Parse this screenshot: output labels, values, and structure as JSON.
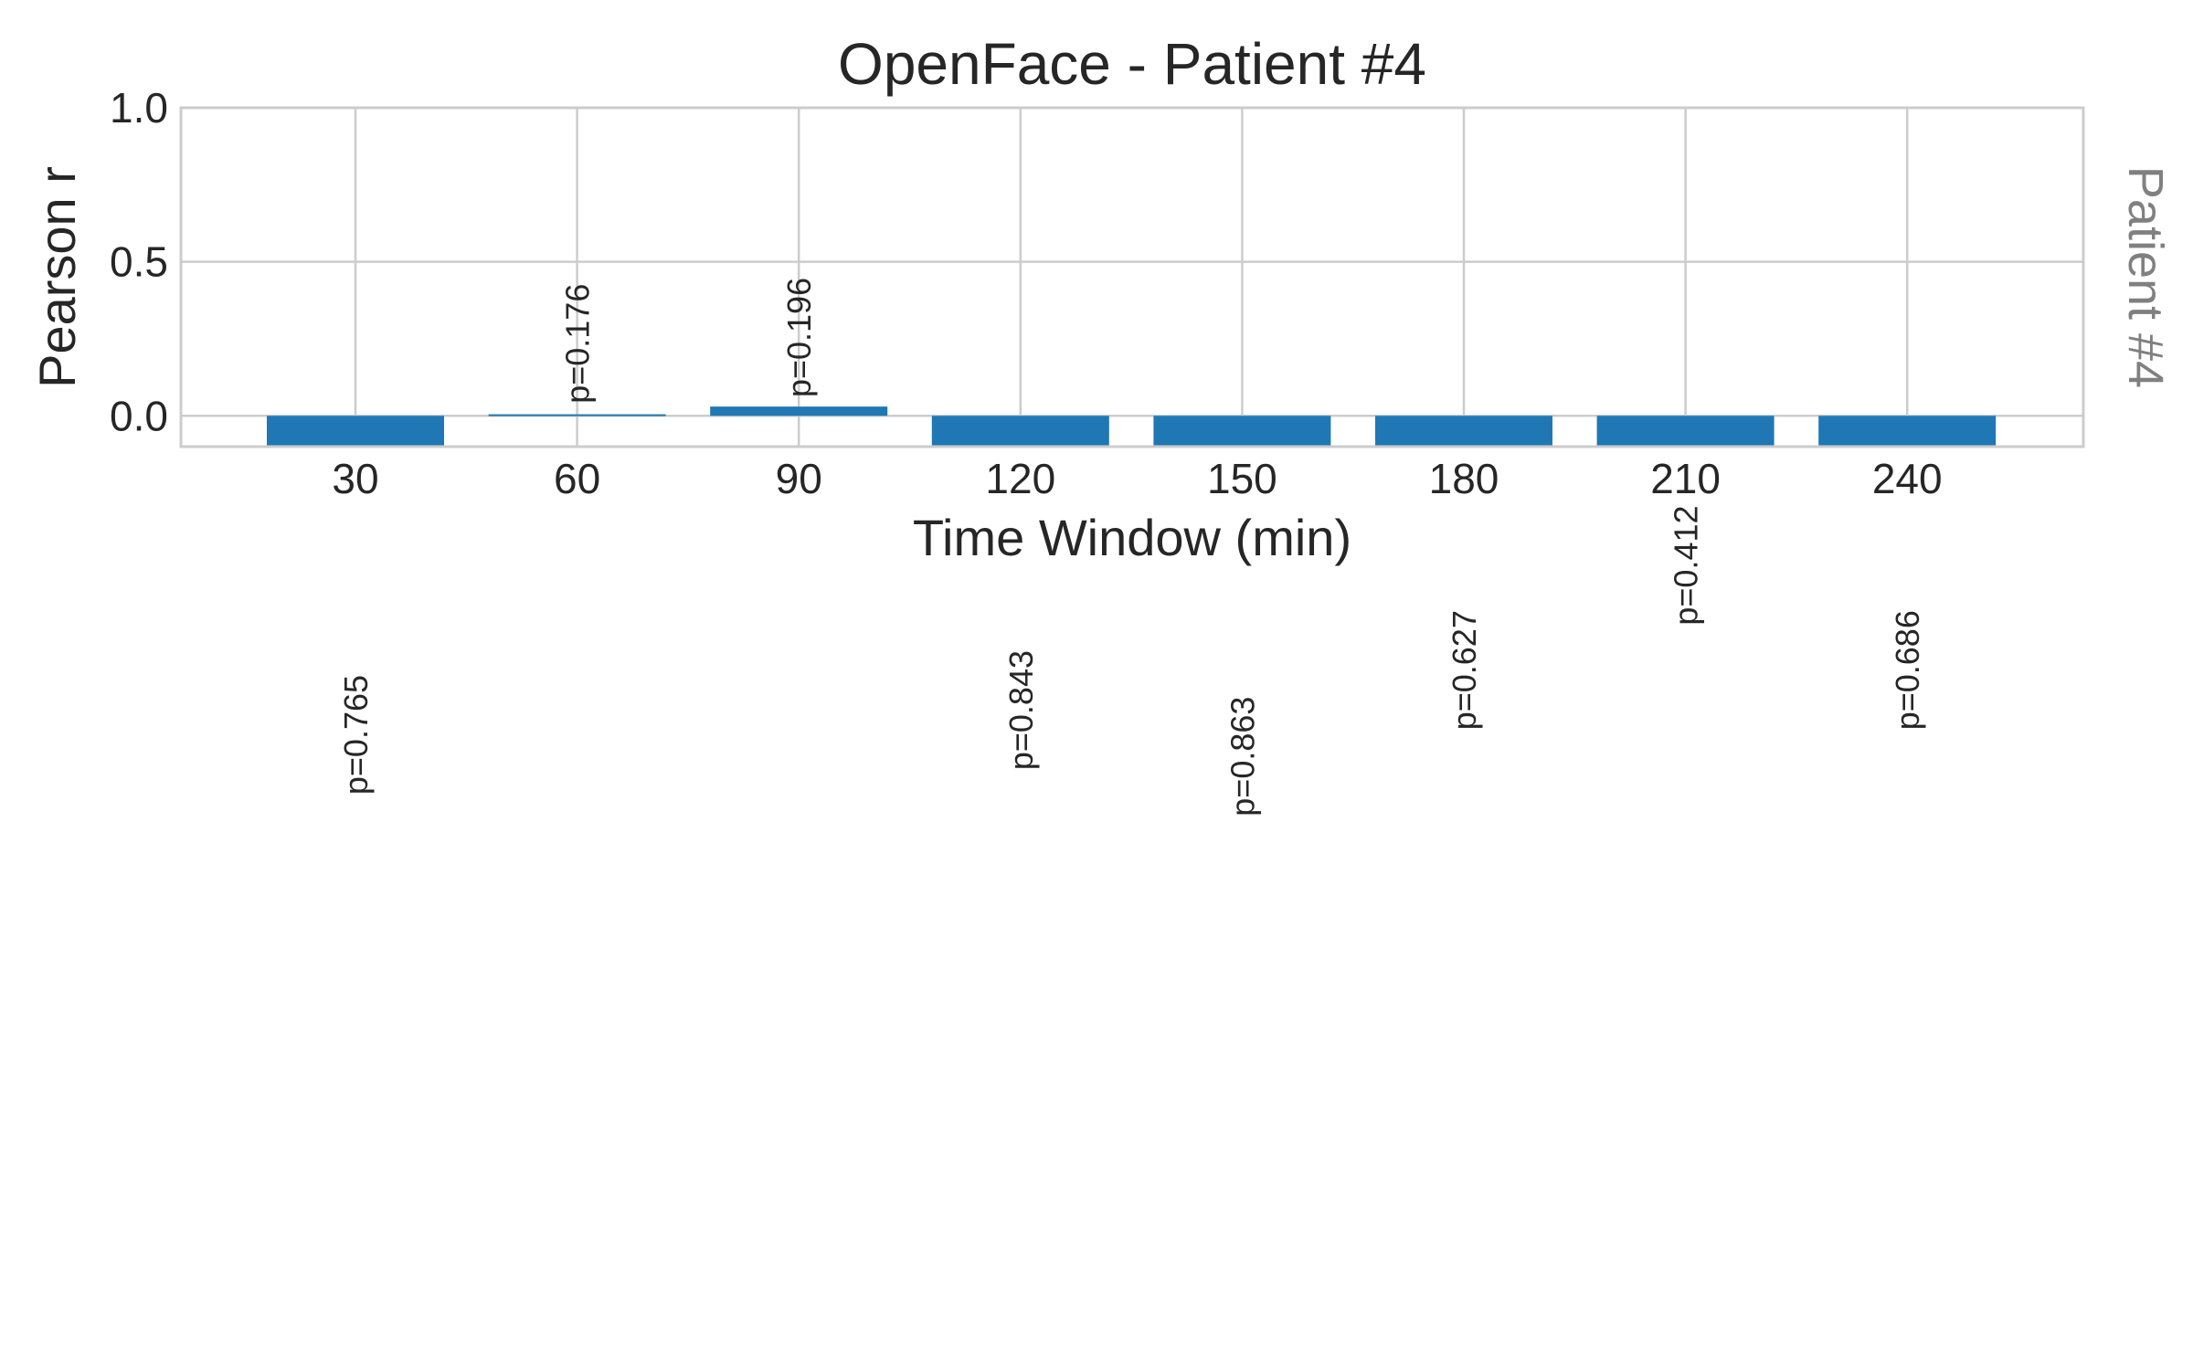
{
  "chart_data": {
    "type": "bar",
    "title": "OpenFace - Patient #4",
    "xlabel": "Time Window (min)",
    "ylabel": "Pearson r",
    "side_label": "Patient #4",
    "categories": [
      "30",
      "60",
      "90",
      "120",
      "150",
      "180",
      "210",
      "240"
    ],
    "values": [
      -0.1,
      0.005,
      0.03,
      -0.1,
      -0.1,
      -0.1,
      -0.1,
      -0.1
    ],
    "p_labels": [
      "p=0.765",
      "p=0.176",
      "p=0.196",
      "p=0.843",
      "p=0.863",
      "p=0.627",
      "p=0.412",
      "p=0.686"
    ],
    "p_label_positions": [
      -1.23,
      0.04,
      0.06,
      -1.15,
      -1.3,
      -1.02,
      -0.68,
      -1.02
    ],
    "ylim": [
      -0.1,
      1.0
    ],
    "yticks": [
      "0.0",
      "0.5",
      "1.0"
    ],
    "ytick_values": [
      0.0,
      0.5,
      1.0
    ],
    "grid": true,
    "bar_color": "#1f77b4"
  }
}
